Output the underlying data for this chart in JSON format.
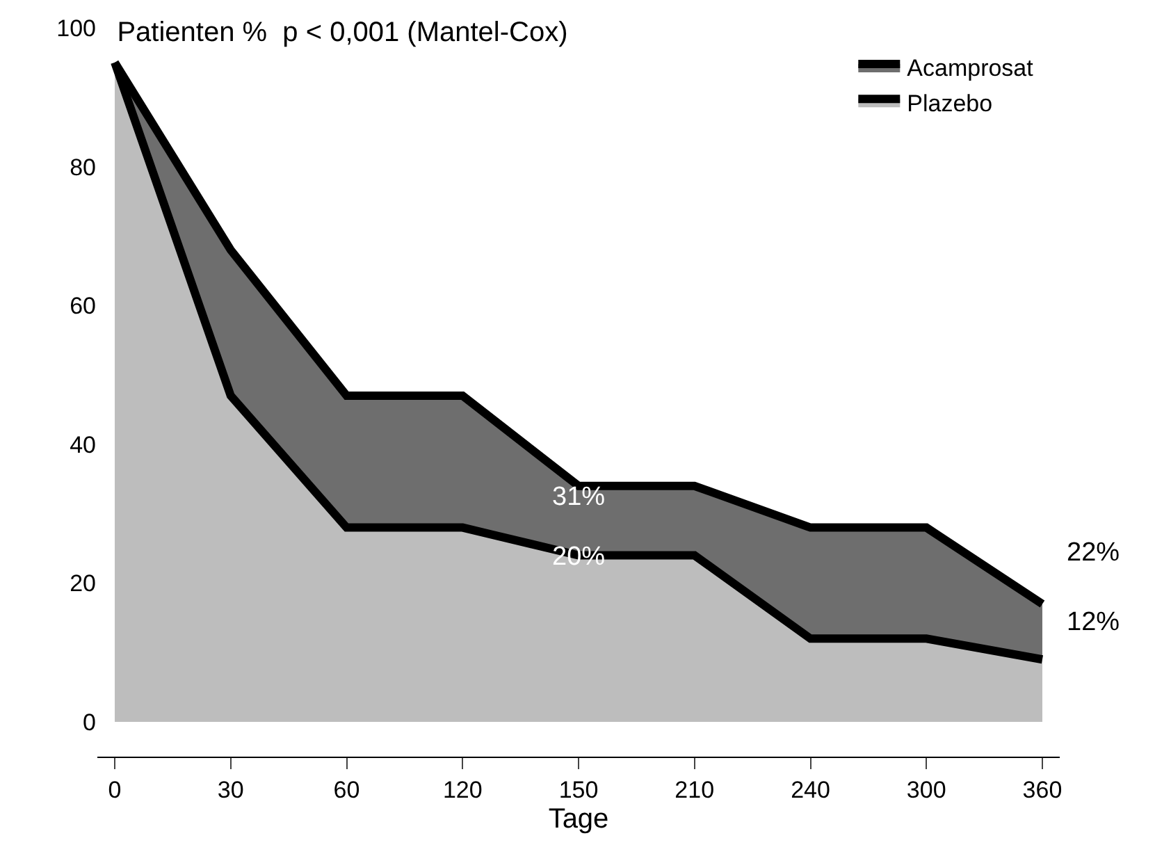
{
  "chart_data": {
    "type": "area",
    "title": "Patienten %  p < 0,001 (Mantel-Cox)",
    "xlabel": "Tage",
    "categories": [
      "0",
      "30",
      "60",
      "120",
      "150",
      "210",
      "240",
      "300",
      "360"
    ],
    "series": [
      {
        "name": "Acamprosat",
        "color": "#6e6e6e",
        "values": [
          95,
          68,
          47,
          47,
          34,
          34,
          28,
          28,
          17
        ]
      },
      {
        "name": "Plazebo",
        "color": "#bdbdbd",
        "values": [
          95,
          47,
          28,
          28,
          24,
          24,
          12,
          12,
          9
        ]
      }
    ],
    "annotations": [
      "31%",
      "20%",
      "22%",
      "12%"
    ],
    "ylim": [
      -5,
      100
    ],
    "yticks": [
      0,
      20,
      40,
      60,
      80,
      100
    ],
    "legend": "top right"
  }
}
